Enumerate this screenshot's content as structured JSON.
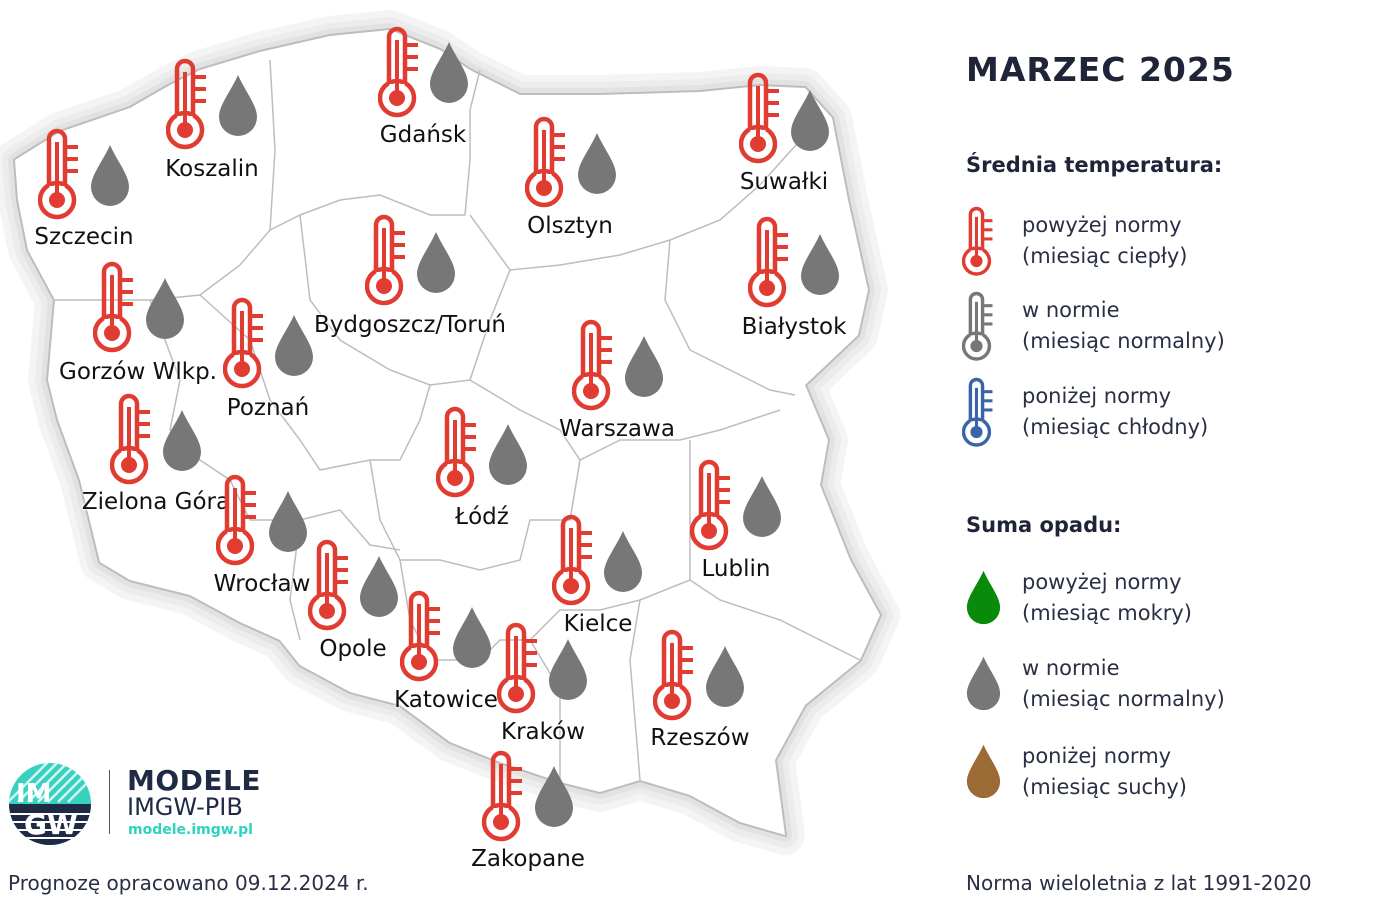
{
  "header": {
    "title": "MARZEC 2025"
  },
  "legend": {
    "temperature_title": "Średnia temperatura:",
    "temperature_items": [
      {
        "line1": "powyżej normy",
        "line2": "(miesiąc ciepły)",
        "color": "#e03c31",
        "icon": "thermometer-icon"
      },
      {
        "line1": "w normie",
        "line2": "(miesiąc normalny)",
        "color": "#777777",
        "icon": "thermometer-icon"
      },
      {
        "line1": "poniżej normy",
        "line2": "(miesiąc chłodny)",
        "color": "#3b63a8",
        "icon": "thermometer-icon"
      }
    ],
    "precip_title": "Suma opadu:",
    "precip_items": [
      {
        "line1": "powyżej normy",
        "line2": "(miesiąc mokry)",
        "color": "#0a8a0a",
        "icon": "drop-icon"
      },
      {
        "line1": "w normie",
        "line2": "(miesiąc normalny)",
        "color": "#777777",
        "icon": "drop-icon"
      },
      {
        "line1": "poniżej normy",
        "line2": "(miesiąc suchy)",
        "color": "#9c6a35",
        "icon": "drop-icon"
      }
    ]
  },
  "cities": [
    {
      "name": "Szczecin",
      "temperature": "powyżej normy",
      "precipitation": "w normie"
    },
    {
      "name": "Koszalin",
      "temperature": "powyżej normy",
      "precipitation": "w normie"
    },
    {
      "name": "Gdańsk",
      "temperature": "powyżej normy",
      "precipitation": "w normie"
    },
    {
      "name": "Olsztyn",
      "temperature": "powyżej normy",
      "precipitation": "w normie"
    },
    {
      "name": "Suwałki",
      "temperature": "powyżej normy",
      "precipitation": "w normie"
    },
    {
      "name": "Bydgoszcz/Toruń",
      "temperature": "powyżej normy",
      "precipitation": "w normie"
    },
    {
      "name": "Białystok",
      "temperature": "powyżej normy",
      "precipitation": "w normie"
    },
    {
      "name": "Gorzów Wlkp.",
      "temperature": "powyżej normy",
      "precipitation": "w normie"
    },
    {
      "name": "Poznań",
      "temperature": "powyżej normy",
      "precipitation": "w normie"
    },
    {
      "name": "Warszawa",
      "temperature": "powyżej normy",
      "precipitation": "w normie"
    },
    {
      "name": "Zielona Góra",
      "temperature": "powyżej normy",
      "precipitation": "w normie"
    },
    {
      "name": "Łódź",
      "temperature": "powyżej normy",
      "precipitation": "w normie"
    },
    {
      "name": "Lublin",
      "temperature": "powyżej normy",
      "precipitation": "w normie"
    },
    {
      "name": "Wrocław",
      "temperature": "powyżej normy",
      "precipitation": "w normie"
    },
    {
      "name": "Kielce",
      "temperature": "powyżej normy",
      "precipitation": "w normie"
    },
    {
      "name": "Opole",
      "temperature": "powyżej normy",
      "precipitation": "w normie"
    },
    {
      "name": "Katowice",
      "temperature": "powyżej normy",
      "precipitation": "w normie"
    },
    {
      "name": "Kraków",
      "temperature": "powyżej normy",
      "precipitation": "w normie"
    },
    {
      "name": "Rzeszów",
      "temperature": "powyżej normy",
      "precipitation": "w normie"
    },
    {
      "name": "Zakopane",
      "temperature": "powyżej normy",
      "precipitation": "w normie"
    }
  ],
  "logo": {
    "line1": "MODELE",
    "line2": "IMGW-PIB",
    "url": "modele.imgw.pl",
    "mark": "IMGW"
  },
  "footer": {
    "left": "Prognozę opracowano 09.12.2024 r.",
    "right": "Norma wieloletnia z lat 1991-2020"
  }
}
